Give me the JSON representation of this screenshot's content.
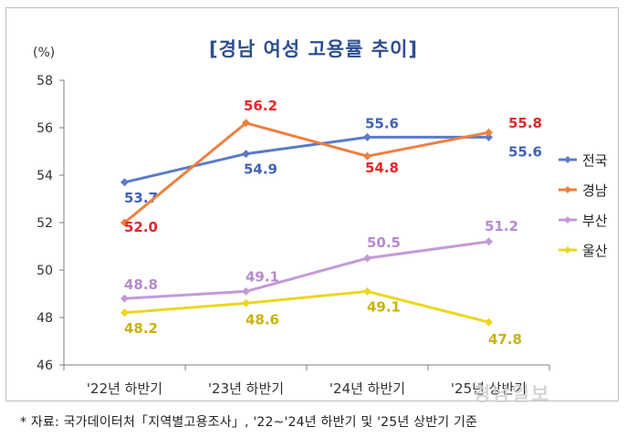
{
  "title": "[경남 여성 고용률 추이]",
  "unit": "(%)",
  "source": "* 자료: 국가데이터처「지역별고용조사」, '22~'24년 하반기 및 '25년 상반기 기준",
  "watermark": "경남일보",
  "chart_data": {
    "type": "line",
    "title": "[경남 여성 고용률 추이]",
    "ylabel": "(%)",
    "categories": [
      "'22년 하반기",
      "'23년 하반기",
      "'24년 하반기",
      "'25년 상반기"
    ],
    "ylim": [
      46,
      58
    ],
    "yticks": [
      46,
      48,
      50,
      52,
      54,
      56,
      58
    ],
    "grid": false,
    "legend_position": "right",
    "series": [
      {
        "name": "전국",
        "color": "#5b7bc6",
        "values": [
          53.7,
          54.9,
          55.6,
          55.6
        ],
        "labels": [
          "53.7",
          "54.9",
          "55.6",
          "55.6"
        ],
        "label_color": "#3f62b5"
      },
      {
        "name": "경남",
        "color": "#ef7f3f",
        "values": [
          52.0,
          56.2,
          54.8,
          55.8
        ],
        "labels": [
          "52.0",
          "56.2",
          "54.8",
          "55.8"
        ],
        "label_color": "#e3262a"
      },
      {
        "name": "부산",
        "color": "#c39ad8",
        "values": [
          48.8,
          49.1,
          50.5,
          51.2
        ],
        "labels": [
          "48.8",
          "49.1",
          "50.5",
          "51.2"
        ],
        "label_color": "#b48ad0"
      },
      {
        "name": "울산",
        "color": "#ecd61f",
        "values": [
          48.2,
          48.6,
          49.1,
          47.8
        ],
        "labels": [
          "48.2",
          "48.6",
          "49.1",
          "47.8"
        ],
        "label_color": "#c9b20e"
      }
    ]
  }
}
